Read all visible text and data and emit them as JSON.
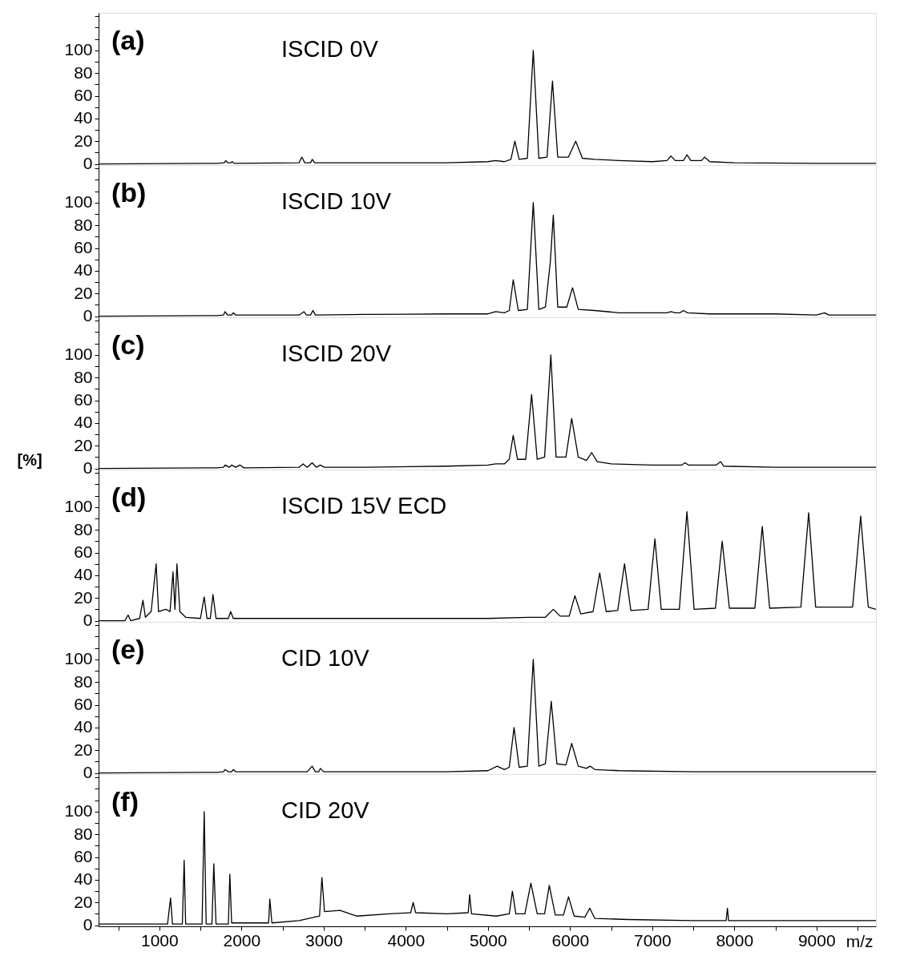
{
  "chart_data": [
    {
      "type": "line",
      "annotations": [
        "(a)",
        "ISCID 0V"
      ],
      "tick_labels": "y",
      "xlim": [
        260,
        9724
      ],
      "ylim": [
        -1,
        133
      ],
      "yticks": [
        0,
        {
          "value": 10,
          "label": null
        },
        20,
        {
          "value": 30,
          "label": null
        },
        40,
        {
          "value": 50,
          "label": null
        },
        60,
        {
          "value": 70,
          "label": null
        },
        80,
        {
          "value": 90,
          "label": null
        },
        100,
        {
          "value": 110,
          "label": null
        },
        {
          "value": 120,
          "label": null
        },
        {
          "value": 130,
          "label": null
        }
      ],
      "grid": false,
      "x": [
        260,
        1700,
        1790,
        1809,
        1830,
        1870,
        1887,
        1910,
        2700,
        2735,
        2770,
        2840,
        2862,
        2890,
        3500,
        4500,
        5000,
        5094,
        5200,
        5280,
        5328,
        5380,
        5480,
        5552,
        5620,
        5720,
        5786,
        5850,
        5980,
        6069,
        6150,
        6300,
        6600,
        7000,
        7180,
        7228,
        7280,
        7380,
        7423,
        7470,
        7600,
        7637,
        7700,
        8000,
        9000,
        9724
      ],
      "series": [
        {
          "color": "#000000",
          "values": [
            0,
            0.5,
            1,
            3,
            1,
            1,
            2,
            0.5,
            1,
            6,
            1,
            1,
            4,
            1,
            1,
            1,
            2,
            3,
            2,
            4,
            20,
            4,
            5,
            100,
            5,
            6,
            73,
            6,
            6,
            20,
            5,
            4,
            3,
            2,
            3,
            7,
            3,
            3,
            8,
            3,
            3,
            6,
            2,
            1,
            0.5,
            0.5
          ]
        }
      ]
    },
    {
      "type": "line",
      "annotations": [
        "(b)",
        "ISCID 10V"
      ],
      "tick_labels": "y",
      "xlim": [
        260,
        9724
      ],
      "ylim": [
        -1,
        133
      ],
      "yticks": [
        0,
        {
          "value": 10,
          "label": null
        },
        20,
        {
          "value": 30,
          "label": null
        },
        40,
        {
          "value": 50,
          "label": null
        },
        60,
        {
          "value": 70,
          "label": null
        },
        80,
        {
          "value": 90,
          "label": null
        },
        100,
        {
          "value": 110,
          "label": null
        },
        {
          "value": 120,
          "label": null
        },
        {
          "value": 130,
          "label": null
        }
      ],
      "grid": false,
      "x": [
        260,
        1700,
        1780,
        1800,
        1830,
        1880,
        1900,
        1930,
        2700,
        2760,
        2790,
        2840,
        2870,
        2900,
        3500,
        4500,
        5000,
        5094,
        5200,
        5260,
        5308,
        5370,
        5480,
        5552,
        5620,
        5700,
        5760,
        5796,
        5850,
        5960,
        6030,
        6100,
        6300,
        6600,
        7000,
        7180,
        7228,
        7280,
        7340,
        7380,
        7430,
        7700,
        8500,
        9000,
        9100,
        9150,
        9724
      ],
      "series": [
        {
          "color": "#000000",
          "values": [
            0,
            0.5,
            1,
            4,
            1,
            1,
            3,
            1,
            1,
            4,
            1,
            1,
            5,
            1,
            1.5,
            2,
            2,
            4,
            3,
            5,
            32,
            5,
            6,
            100,
            6,
            8,
            48,
            89,
            8,
            8,
            25,
            6,
            5,
            3,
            3,
            3,
            4,
            3,
            3,
            5,
            3,
            2,
            2,
            1,
            3,
            1,
            1
          ]
        }
      ]
    },
    {
      "type": "line",
      "annotations": [
        "(c)",
        "ISCID 20V"
      ],
      "ylabel": "[%]",
      "tick_labels": "y",
      "xlim": [
        260,
        9724
      ],
      "ylim": [
        -1,
        133
      ],
      "yticks": [
        0,
        {
          "value": 10,
          "label": null
        },
        20,
        {
          "value": 30,
          "label": null
        },
        40,
        {
          "value": 50,
          "label": null
        },
        60,
        {
          "value": 70,
          "label": null
        },
        80,
        {
          "value": 90,
          "label": null
        },
        100,
        {
          "value": 110,
          "label": null
        },
        {
          "value": 120,
          "label": null
        },
        {
          "value": 130,
          "label": null
        }
      ],
      "grid": false,
      "x": [
        260,
        1700,
        1780,
        1800,
        1850,
        1880,
        1930,
        1980,
        2030,
        2700,
        2750,
        2800,
        2860,
        2910,
        2960,
        3010,
        3500,
        4500,
        5000,
        5094,
        5200,
        5260,
        5308,
        5360,
        5460,
        5532,
        5600,
        5690,
        5766,
        5830,
        5950,
        6020,
        6100,
        6200,
        6263,
        6330,
        6500,
        7000,
        7360,
        7400,
        7440,
        7780,
        7833,
        7870,
        8500,
        9724
      ],
      "series": [
        {
          "color": "#000000",
          "values": [
            0,
            0.5,
            1,
            3,
            1,
            3,
            1,
            3,
            0.5,
            1,
            4,
            1,
            5,
            1,
            3,
            1,
            1,
            2,
            3,
            4,
            4,
            8,
            29,
            8,
            8,
            65,
            8,
            10,
            100,
            10,
            10,
            44,
            10,
            7,
            14,
            6,
            4,
            3,
            3,
            5,
            3,
            3,
            6,
            2,
            1,
            1
          ]
        }
      ]
    },
    {
      "type": "line",
      "annotations": [
        "(d)",
        "ISCID 15V ECD"
      ],
      "tick_labels": "y",
      "xlim": [
        260,
        9724
      ],
      "ylim": [
        -1,
        133
      ],
      "yticks": [
        0,
        {
          "value": 10,
          "label": null
        },
        20,
        {
          "value": 30,
          "label": null
        },
        40,
        {
          "value": 50,
          "label": null
        },
        60,
        {
          "value": 70,
          "label": null
        },
        80,
        {
          "value": 90,
          "label": null
        },
        100,
        {
          "value": 110,
          "label": null
        },
        {
          "value": 120,
          "label": null
        },
        {
          "value": 130,
          "label": null
        }
      ],
      "grid": false,
      "x": [
        260,
        580,
        620,
        650,
        760,
        800,
        830,
        900,
        961,
        990,
        1080,
        1130,
        1166,
        1190,
        1214,
        1250,
        1320,
        1500,
        1546,
        1580,
        1620,
        1653,
        1690,
        1840,
        1868,
        1900,
        2500,
        3500,
        4500,
        5000,
        5500,
        5700,
        5796,
        5880,
        5990,
        6059,
        6130,
        6280,
        6361,
        6440,
        6580,
        6663,
        6740,
        6950,
        7033,
        7110,
        7330,
        7423,
        7510,
        7770,
        7852,
        7940,
        8250,
        8340,
        8430,
        8810,
        8905,
        8990,
        9440,
        9538,
        9630,
        9724
      ],
      "series": [
        {
          "color": "#000000",
          "values": [
            0,
            0,
            5,
            0,
            2,
            18,
            3,
            8,
            50,
            8,
            10,
            8,
            43,
            10,
            50,
            8,
            3,
            2,
            21,
            2,
            2,
            23,
            2,
            2,
            8,
            2,
            2,
            2,
            2,
            2,
            3,
            3,
            10,
            4,
            4,
            22,
            6,
            8,
            42,
            8,
            9,
            50,
            9,
            10,
            72,
            10,
            10,
            96,
            10,
            11,
            70,
            11,
            11,
            83,
            11,
            12,
            95,
            12,
            12,
            92,
            12,
            10
          ]
        }
      ]
    },
    {
      "type": "line",
      "annotations": [
        "(e)",
        "CID 10V"
      ],
      "tick_labels": "y",
      "xlim": [
        260,
        9724
      ],
      "ylim": [
        -1,
        133
      ],
      "yticks": [
        0,
        {
          "value": 10,
          "label": null
        },
        20,
        {
          "value": 30,
          "label": null
        },
        40,
        {
          "value": 50,
          "label": null
        },
        60,
        {
          "value": 70,
          "label": null
        },
        80,
        {
          "value": 90,
          "label": null
        },
        100,
        {
          "value": 110,
          "label": null
        },
        {
          "value": 120,
          "label": null
        },
        {
          "value": 130,
          "label": null
        }
      ],
      "grid": false,
      "x": [
        260,
        1700,
        1780,
        1800,
        1840,
        1880,
        1900,
        1930,
        2800,
        2860,
        2900,
        2940,
        2960,
        3000,
        3500,
        4500,
        5000,
        5113,
        5200,
        5260,
        5318,
        5380,
        5480,
        5552,
        5620,
        5700,
        5771,
        5840,
        5950,
        6020,
        6100,
        6200,
        6244,
        6300,
        6600,
        7500,
        9724
      ],
      "series": [
        {
          "color": "#000000",
          "values": [
            0,
            0.5,
            1,
            3,
            1,
            1,
            3,
            1,
            1,
            6,
            1,
            1,
            4,
            1,
            1,
            1,
            2,
            6,
            3,
            5,
            40,
            5,
            6,
            100,
            6,
            8,
            63,
            8,
            7,
            26,
            6,
            4,
            6,
            3,
            2,
            1,
            1
          ]
        }
      ]
    },
    {
      "type": "line",
      "annotations": [
        "(f)",
        "CID 20V"
      ],
      "xlabel": "m/z",
      "xlim": [
        260,
        9724
      ],
      "ylim": [
        -1,
        133
      ],
      "xticks": [
        {
          "value": 500,
          "label": null
        },
        1000,
        {
          "value": 1500,
          "label": null
        },
        2000,
        {
          "value": 2500,
          "label": null
        },
        3000,
        {
          "value": 3500,
          "label": null
        },
        4000,
        {
          "value": 4500,
          "label": null
        },
        5000,
        {
          "value": 5500,
          "label": null
        },
        6000,
        {
          "value": 6500,
          "label": null
        },
        7000,
        {
          "value": 7500,
          "label": null
        },
        8000,
        {
          "value": 8500,
          "label": null
        },
        9000,
        {
          "value": 9500,
          "label": null
        }
      ],
      "yticks": [
        0,
        {
          "value": 10,
          "label": null
        },
        20,
        {
          "value": 30,
          "label": null
        },
        40,
        {
          "value": 50,
          "label": null
        },
        60,
        {
          "value": 70,
          "label": null
        },
        80,
        {
          "value": 90,
          "label": null
        },
        100,
        {
          "value": 110,
          "label": null
        },
        {
          "value": 120,
          "label": null
        },
        {
          "value": 130,
          "label": null
        }
      ],
      "grid": false,
      "x": [
        260,
        1100,
        1136,
        1160,
        1280,
        1302,
        1320,
        1520,
        1546,
        1570,
        1640,
        1663,
        1690,
        1840,
        1858,
        1880,
        2330,
        2345,
        2370,
        2700,
        2950,
        2979,
        3010,
        3200,
        3400,
        3800,
        4060,
        4090,
        4120,
        4500,
        4760,
        4778,
        4800,
        5100,
        5260,
        5298,
        5340,
        5450,
        5523,
        5600,
        5690,
        5747,
        5820,
        5920,
        5981,
        6050,
        6180,
        6240,
        6300,
        6700,
        7500,
        7900,
        7916,
        7930,
        8500,
        9724
      ],
      "series": [
        {
          "color": "#000000",
          "values": [
            1,
            1,
            24,
            1,
            1,
            57,
            1,
            1,
            100,
            1,
            1,
            54,
            1,
            1,
            45,
            2,
            2,
            23,
            2,
            4,
            8,
            42,
            12,
            13,
            8,
            10,
            11,
            20,
            11,
            10,
            11,
            27,
            10,
            8,
            10,
            30,
            10,
            10,
            37,
            10,
            10,
            35,
            9,
            9,
            25,
            8,
            7,
            15,
            6,
            5,
            4,
            4,
            15,
            4,
            4,
            4
          ]
        }
      ]
    }
  ]
}
